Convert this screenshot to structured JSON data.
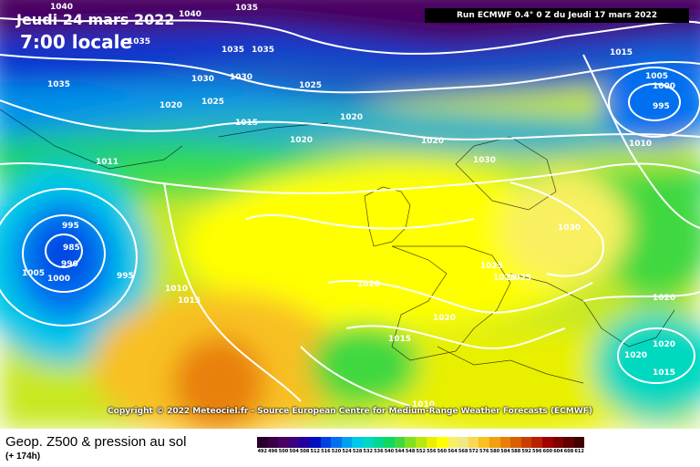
{
  "header": {
    "date": "Jeudi 24 mars 2022",
    "time": "7:00 locale",
    "run": "Run ECMWF 0.4° 0 Z du Jeudi 17 mars 2022"
  },
  "copyright": "Copyright © 2022 Meteociel.fr - Source European Centre for Medium-Range Weather Forecasts (ECMWF)",
  "footer": {
    "title": "Geop. Z500 & pression au sol",
    "subtitle": "(+ 174h)"
  },
  "legend": {
    "values": [
      "492",
      "496",
      "500",
      "504",
      "508",
      "512",
      "516",
      "520",
      "524",
      "528",
      "532",
      "536",
      "540",
      "544",
      "548",
      "552",
      "556",
      "560",
      "564",
      "568",
      "572",
      "576",
      "580",
      "584",
      "588",
      "592",
      "596",
      "600",
      "604",
      "608",
      "612"
    ],
    "colors": [
      "#2a002a",
      "#3a0045",
      "#4a0060",
      "#3a0080",
      "#2200a0",
      "#0010c0",
      "#0040e0",
      "#0070f0",
      "#00a0f0",
      "#00c8e8",
      "#00d8c0",
      "#00d890",
      "#10d860",
      "#40d840",
      "#80e020",
      "#b8e810",
      "#e8f000",
      "#ffff00",
      "#f8f060",
      "#f0e880",
      "#f8d850",
      "#f8c020",
      "#f0a010",
      "#e88008",
      "#d86000",
      "#c84000",
      "#b82000",
      "#a00000",
      "#800000",
      "#600000",
      "#400000"
    ]
  },
  "isobars": [
    {
      "label": "1040"
    },
    {
      "label": "1035"
    },
    {
      "label": "1035"
    },
    {
      "label": "1040"
    },
    {
      "label": "1035"
    },
    {
      "label": "1035"
    },
    {
      "label": "1035"
    },
    {
      "label": "1030"
    },
    {
      "label": "1030"
    },
    {
      "label": "1025"
    },
    {
      "label": "1020"
    },
    {
      "label": "1025"
    },
    {
      "label": "1020"
    },
    {
      "label": "1015"
    },
    {
      "label": "1015"
    },
    {
      "label": "1005"
    },
    {
      "label": "1000"
    },
    {
      "label": "995"
    },
    {
      "label": "1010"
    },
    {
      "label": "1020"
    },
    {
      "label": "1020"
    },
    {
      "label": "1030"
    },
    {
      "label": "1030"
    },
    {
      "label": "1011"
    },
    {
      "label": "995"
    },
    {
      "label": "985"
    },
    {
      "label": "990"
    },
    {
      "label": "1005"
    },
    {
      "label": "1000"
    },
    {
      "label": "995"
    },
    {
      "label": "1010"
    },
    {
      "label": "1015"
    },
    {
      "label": "1020"
    },
    {
      "label": "1025"
    },
    {
      "label": "1025"
    },
    {
      "label": "1025"
    },
    {
      "label": "1020"
    },
    {
      "label": "1015"
    },
    {
      "label": "1020"
    },
    {
      "label": "1020"
    },
    {
      "label": "1020"
    },
    {
      "label": "1015"
    },
    {
      "label": "1010"
    }
  ]
}
